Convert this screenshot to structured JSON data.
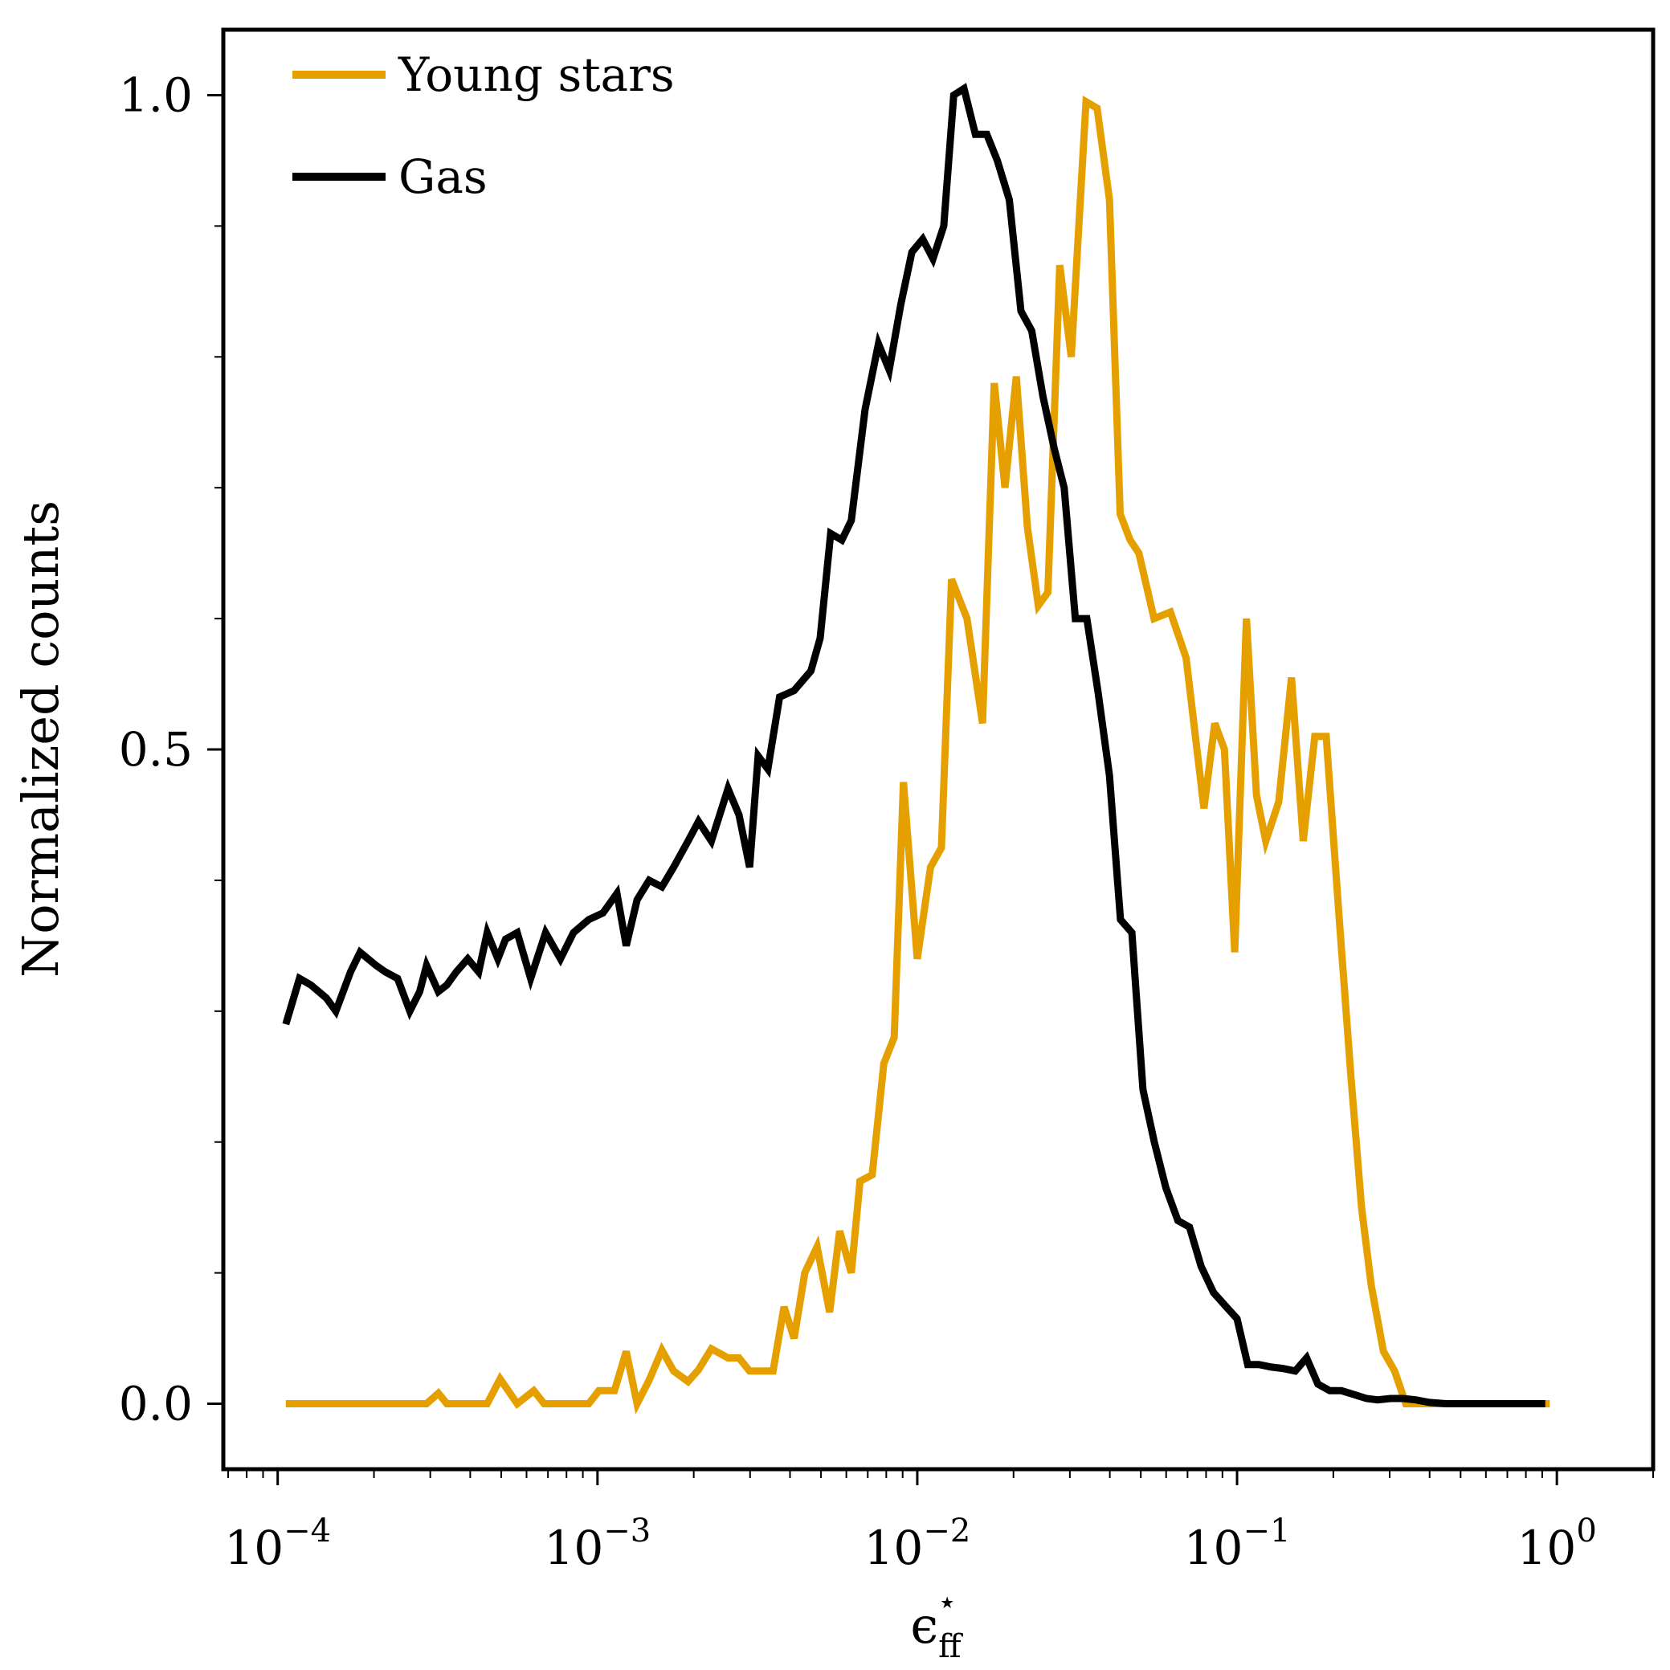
{
  "chart_data": {
    "type": "line",
    "xscale": "log",
    "xlim": [
      6.76e-05,
      2.0
    ],
    "ylim": [
      -0.05,
      1.05
    ],
    "xlabel": {
      "base": "ϵ",
      "sub": "ff",
      "sup": "⋆"
    },
    "ylabel": "Normalized counts",
    "grid": false,
    "legend": "top-left",
    "x_ticks": [
      {
        "value": 0.0001,
        "base": "10",
        "exp": "−4"
      },
      {
        "value": 0.001,
        "base": "10",
        "exp": "−3"
      },
      {
        "value": 0.01,
        "base": "10",
        "exp": "−2"
      },
      {
        "value": 0.1,
        "base": "10",
        "exp": "−1"
      },
      {
        "value": 1,
        "base": "10",
        "exp": "0"
      }
    ],
    "y_ticks": [
      {
        "value": 0.0,
        "label": "0.0"
      },
      {
        "value": 0.5,
        "label": "0.5"
      },
      {
        "value": 1.0,
        "label": "1.0"
      }
    ],
    "y_minor_ticks": [
      0.1,
      0.2,
      0.3,
      0.4,
      0.6,
      0.7,
      0.8,
      0.9
    ],
    "series": [
      {
        "name": "Young stars",
        "color": "#E5A000",
        "x": [
          0.000106,
          0.000127,
          0.000152,
          0.000181,
          0.000217,
          0.000259,
          0.000292,
          0.000318,
          0.000338,
          0.000379,
          0.000452,
          0.000496,
          0.000561,
          0.000632,
          0.000681,
          0.000787,
          0.000939,
          0.00101,
          0.00113,
          0.00123,
          0.00133,
          0.00145,
          0.00159,
          0.00173,
          0.00192,
          0.00207,
          0.00227,
          0.00256,
          0.00277,
          0.00299,
          0.00318,
          0.00354,
          0.00383,
          0.00412,
          0.00445,
          0.00486,
          0.00532,
          0.00572,
          0.00622,
          0.00662,
          0.00723,
          0.00786,
          0.00847,
          0.00905,
          0.01,
          0.011,
          0.0119,
          0.0128,
          0.0143,
          0.016,
          0.0174,
          0.0188,
          0.0204,
          0.0221,
          0.0239,
          0.0256,
          0.0279,
          0.0303,
          0.0337,
          0.0365,
          0.0399,
          0.0431,
          0.0463,
          0.0493,
          0.055,
          0.0619,
          0.0693,
          0.0788,
          0.0852,
          0.0913,
          0.0983,
          0.107,
          0.115,
          0.123,
          0.135,
          0.148,
          0.161,
          0.175,
          0.19,
          0.208,
          0.227,
          0.245,
          0.263,
          0.287,
          0.311,
          0.337,
          0.367,
          0.399,
          0.433,
          0.471,
          0.514,
          0.557,
          0.6,
          0.65,
          0.7,
          0.75,
          0.8,
          0.85,
          0.9,
          0.95
        ],
        "y": [
          0.0,
          0.0,
          0.0,
          0.0,
          0.0,
          0.0,
          0.0,
          0.008,
          0.0,
          0.0,
          0.0,
          0.019,
          0.0,
          0.01,
          0.0,
          0.0,
          0.0,
          0.01,
          0.01,
          0.04,
          0.0,
          0.018,
          0.041,
          0.025,
          0.017,
          0.026,
          0.042,
          0.035,
          0.035,
          0.025,
          0.025,
          0.025,
          0.074,
          0.05,
          0.1,
          0.12,
          0.07,
          0.132,
          0.1,
          0.17,
          0.175,
          0.26,
          0.28,
          0.475,
          0.34,
          0.41,
          0.425,
          0.63,
          0.6,
          0.52,
          0.78,
          0.7,
          0.785,
          0.67,
          0.61,
          0.62,
          0.87,
          0.8,
          0.995,
          0.99,
          0.92,
          0.68,
          0.66,
          0.65,
          0.6,
          0.605,
          0.57,
          0.455,
          0.52,
          0.5,
          0.345,
          0.6,
          0.465,
          0.43,
          0.46,
          0.555,
          0.43,
          0.51,
          0.51,
          0.375,
          0.25,
          0.15,
          0.09,
          0.04,
          0.025,
          0.0,
          0.0,
          0.0,
          0.0,
          0.0,
          0.0,
          0.0,
          0.0,
          0.0,
          0.0,
          0.0,
          0.0,
          0.0,
          0.0,
          0.0
        ]
      },
      {
        "name": "Gas",
        "color": "#000000",
        "x": [
          0.000106,
          0.000117,
          0.000127,
          0.000142,
          0.000152,
          0.000169,
          0.000181,
          0.000203,
          0.000217,
          0.000237,
          0.000259,
          0.000278,
          0.000292,
          0.000318,
          0.000338,
          0.000362,
          0.000393,
          0.000425,
          0.000452,
          0.000488,
          0.000516,
          0.000561,
          0.000618,
          0.000688,
          0.000766,
          0.000841,
          0.000939,
          0.00104,
          0.00115,
          0.00123,
          0.00133,
          0.00145,
          0.00159,
          0.00173,
          0.00192,
          0.00207,
          0.00227,
          0.00256,
          0.00277,
          0.00299,
          0.00318,
          0.00341,
          0.00371,
          0.00412,
          0.00465,
          0.00497,
          0.00536,
          0.00581,
          0.00622,
          0.00687,
          0.00756,
          0.00817,
          0.00888,
          0.00962,
          0.0104,
          0.0112,
          0.0121,
          0.013,
          0.014,
          0.0152,
          0.0165,
          0.0178,
          0.0194,
          0.0211,
          0.0228,
          0.0247,
          0.0268,
          0.0288,
          0.0312,
          0.0339,
          0.0367,
          0.0399,
          0.0432,
          0.0469,
          0.0508,
          0.0551,
          0.0599,
          0.0653,
          0.071,
          0.0772,
          0.0844,
          0.0918,
          0.1,
          0.108,
          0.117,
          0.128,
          0.139,
          0.152,
          0.165,
          0.179,
          0.195,
          0.212,
          0.232,
          0.254,
          0.275,
          0.302,
          0.33,
          0.362,
          0.4,
          0.45,
          0.52,
          0.6,
          0.7,
          0.8,
          0.92
        ],
        "y": [
          0.29,
          0.325,
          0.32,
          0.31,
          0.3,
          0.33,
          0.345,
          0.335,
          0.33,
          0.325,
          0.3,
          0.315,
          0.335,
          0.315,
          0.32,
          0.33,
          0.34,
          0.33,
          0.36,
          0.34,
          0.355,
          0.36,
          0.325,
          0.36,
          0.34,
          0.36,
          0.37,
          0.375,
          0.39,
          0.35,
          0.385,
          0.4,
          0.395,
          0.41,
          0.43,
          0.445,
          0.43,
          0.47,
          0.45,
          0.41,
          0.495,
          0.485,
          0.54,
          0.545,
          0.56,
          0.585,
          0.665,
          0.66,
          0.675,
          0.76,
          0.81,
          0.79,
          0.84,
          0.88,
          0.89,
          0.875,
          0.9,
          1.0,
          1.005,
          0.97,
          0.97,
          0.95,
          0.92,
          0.835,
          0.82,
          0.77,
          0.73,
          0.7,
          0.6,
          0.6,
          0.545,
          0.48,
          0.37,
          0.36,
          0.24,
          0.2,
          0.165,
          0.14,
          0.135,
          0.105,
          0.085,
          0.075,
          0.065,
          0.03,
          0.03,
          0.028,
          0.027,
          0.025,
          0.035,
          0.015,
          0.01,
          0.01,
          0.007,
          0.004,
          0.003,
          0.004,
          0.004,
          0.003,
          0.001,
          0.0,
          0.0,
          0.0,
          0.0,
          0.0,
          0.0
        ]
      }
    ]
  }
}
